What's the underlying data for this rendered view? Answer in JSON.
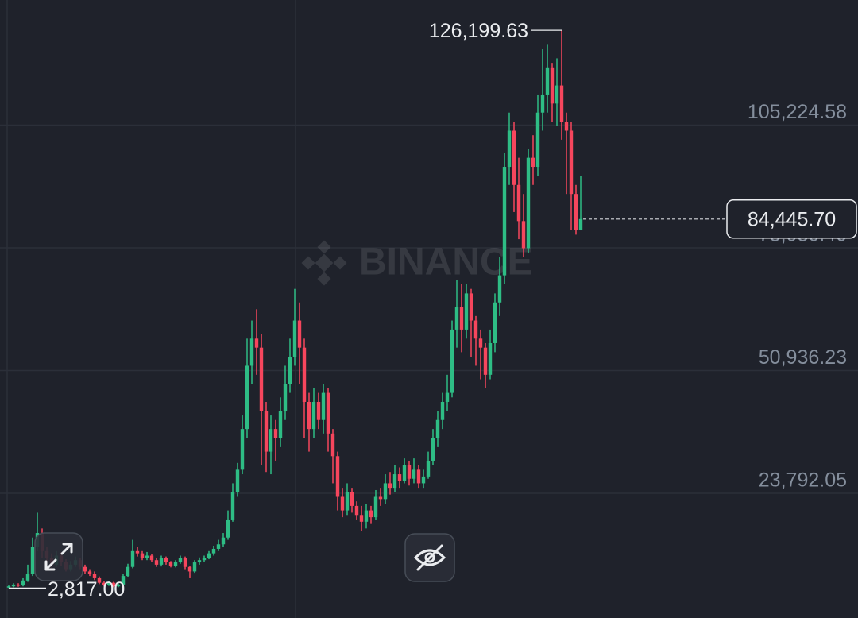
{
  "chart_data": {
    "type": "candlestick",
    "watermark": "BINANCE",
    "up_color": "#2ebd85",
    "down_color": "#f6465d",
    "ylim": [
      -3793,
      132902
    ],
    "yticks": [
      {
        "value": 23792.05,
        "label": "23,792.05"
      },
      {
        "value": 50936.23,
        "label": "50,936.23"
      },
      {
        "value": 78080.4,
        "label": "78,080.40"
      },
      {
        "value": 105224.58,
        "label": "105,224.58"
      }
    ],
    "high_label": "126,199.63",
    "low_label": "2,817.00",
    "last_label": "84,445.70",
    "open": [
      3000,
      3200,
      3600,
      3400,
      4500,
      6000,
      12000,
      15000,
      11000,
      9500,
      8000,
      10000,
      8500,
      7000,
      8000,
      9000,
      7500,
      6500,
      6000,
      5000,
      4000,
      3500,
      4000,
      3200,
      3600,
      5500,
      7500,
      11000,
      10500,
      9500,
      10000,
      9000,
      8000,
      9500,
      8500,
      7800,
      8500,
      9500,
      7500,
      6500,
      8500,
      9000,
      9500,
      10500,
      11500,
      12500,
      14000,
      18000,
      24000,
      29000,
      38000,
      52000,
      58000,
      56000,
      42000,
      33000,
      38000,
      36000,
      42000,
      48000,
      54000,
      62000,
      56000,
      44000,
      38000,
      44000,
      40000,
      46000,
      37000,
      32000,
      23000,
      20000,
      24000,
      21000,
      19000,
      17500,
      20000,
      18500,
      23000,
      22500,
      26000,
      25000,
      28000,
      26500,
      30000,
      27000,
      29000,
      26000,
      27500,
      31000,
      36000,
      40000,
      44000,
      46000,
      60000,
      65000,
      60000,
      68000,
      62000,
      58000,
      56000,
      50000,
      57000,
      66000,
      72000,
      96000,
      104000,
      92000,
      84000,
      78000,
      98000,
      96000,
      108000,
      112000,
      118000,
      110000,
      114000,
      106000,
      104000,
      90000,
      82000
    ],
    "high": [
      3400,
      3900,
      3900,
      5000,
      8000,
      14000,
      19500,
      16000,
      12000,
      10500,
      11000,
      10800,
      9200,
      8800,
      9800,
      9500,
      8000,
      7000,
      6500,
      5400,
      4300,
      4400,
      4200,
      3900,
      6000,
      8200,
      13500,
      12000,
      11000,
      10800,
      10400,
      9400,
      10000,
      9800,
      8800,
      9000,
      10000,
      9800,
      7800,
      9000,
      9600,
      10000,
      11000,
      12200,
      13500,
      15000,
      20000,
      26000,
      30500,
      41000,
      58000,
      62000,
      64500,
      59000,
      44000,
      41000,
      40000,
      45000,
      52000,
      58000,
      69000,
      66000,
      58000,
      46000,
      47000,
      46000,
      48000,
      47000,
      38000,
      33000,
      25000,
      26000,
      25000,
      22000,
      21000,
      21500,
      21000,
      24500,
      25000,
      28000,
      28500,
      30000,
      29500,
      31500,
      31000,
      31500,
      30000,
      29000,
      33000,
      38000,
      42000,
      46000,
      50000,
      62000,
      71000,
      70000,
      70000,
      69000,
      63000,
      60000,
      57000,
      60000,
      68000,
      76000,
      99000,
      108000,
      106000,
      98000,
      90000,
      100000,
      103000,
      112000,
      122000,
      123000,
      119000,
      120000,
      126199.63,
      108000,
      106000,
      92000,
      94000
    ],
    "low": [
      2817,
      3000,
      3100,
      3200,
      4200,
      5500,
      11000,
      9500,
      8500,
      7200,
      7500,
      7800,
      6500,
      6500,
      7500,
      7000,
      6000,
      5500,
      4600,
      3700,
      3200,
      3300,
      3000,
      3000,
      3400,
      5200,
      7200,
      9800,
      9000,
      9000,
      8600,
      7500,
      7600,
      8000,
      7400,
      7400,
      8200,
      7000,
      5000,
      6200,
      8000,
      8600,
      9200,
      10000,
      11000,
      12000,
      13500,
      17500,
      23000,
      28000,
      36000,
      48000,
      50000,
      30000,
      28500,
      28000,
      31000,
      34000,
      40000,
      46000,
      52000,
      48000,
      36000,
      33000,
      36000,
      38000,
      37000,
      33000,
      26000,
      20000,
      18500,
      19000,
      19500,
      18000,
      15500,
      16000,
      17000,
      18000,
      21000,
      21500,
      23500,
      24000,
      25000,
      26000,
      25500,
      26000,
      25000,
      25000,
      27000,
      30000,
      34000,
      38000,
      42000,
      45000,
      56000,
      55000,
      58000,
      54000,
      52000,
      49000,
      47000,
      49000,
      55000,
      63000,
      70000,
      92000,
      86000,
      80000,
      76000,
      77000,
      92000,
      94000,
      104000,
      108000,
      106000,
      105000,
      102000,
      90000,
      82000,
      81000,
      83000
    ],
    "close": [
      3200,
      3600,
      3400,
      4500,
      6000,
      12000,
      15000,
      11000,
      9500,
      8000,
      10000,
      8500,
      7000,
      8000,
      9000,
      7500,
      6500,
      6000,
      5000,
      4000,
      3500,
      4000,
      3200,
      3600,
      5500,
      7500,
      11000,
      10500,
      9500,
      10000,
      9000,
      8000,
      9500,
      8500,
      7800,
      8500,
      9500,
      7500,
      6500,
      8500,
      9000,
      9500,
      10500,
      11500,
      12500,
      14000,
      18000,
      24000,
      29000,
      38000,
      52000,
      58000,
      56000,
      42000,
      33000,
      38000,
      36000,
      42000,
      48000,
      54000,
      62000,
      56000,
      44000,
      38000,
      44000,
      40000,
      46000,
      37000,
      32000,
      23000,
      20000,
      24000,
      21000,
      19000,
      17500,
      20000,
      18500,
      23000,
      22500,
      26000,
      25000,
      28000,
      26500,
      30000,
      27000,
      29000,
      26000,
      27500,
      31000,
      36000,
      40000,
      44000,
      46000,
      60000,
      65000,
      60000,
      68000,
      62000,
      58000,
      56000,
      50000,
      57000,
      66000,
      72000,
      96000,
      104000,
      92000,
      84000,
      78000,
      98000,
      96000,
      108000,
      112000,
      118000,
      110000,
      114000,
      106000,
      104000,
      90000,
      82000,
      84445.7
    ]
  }
}
